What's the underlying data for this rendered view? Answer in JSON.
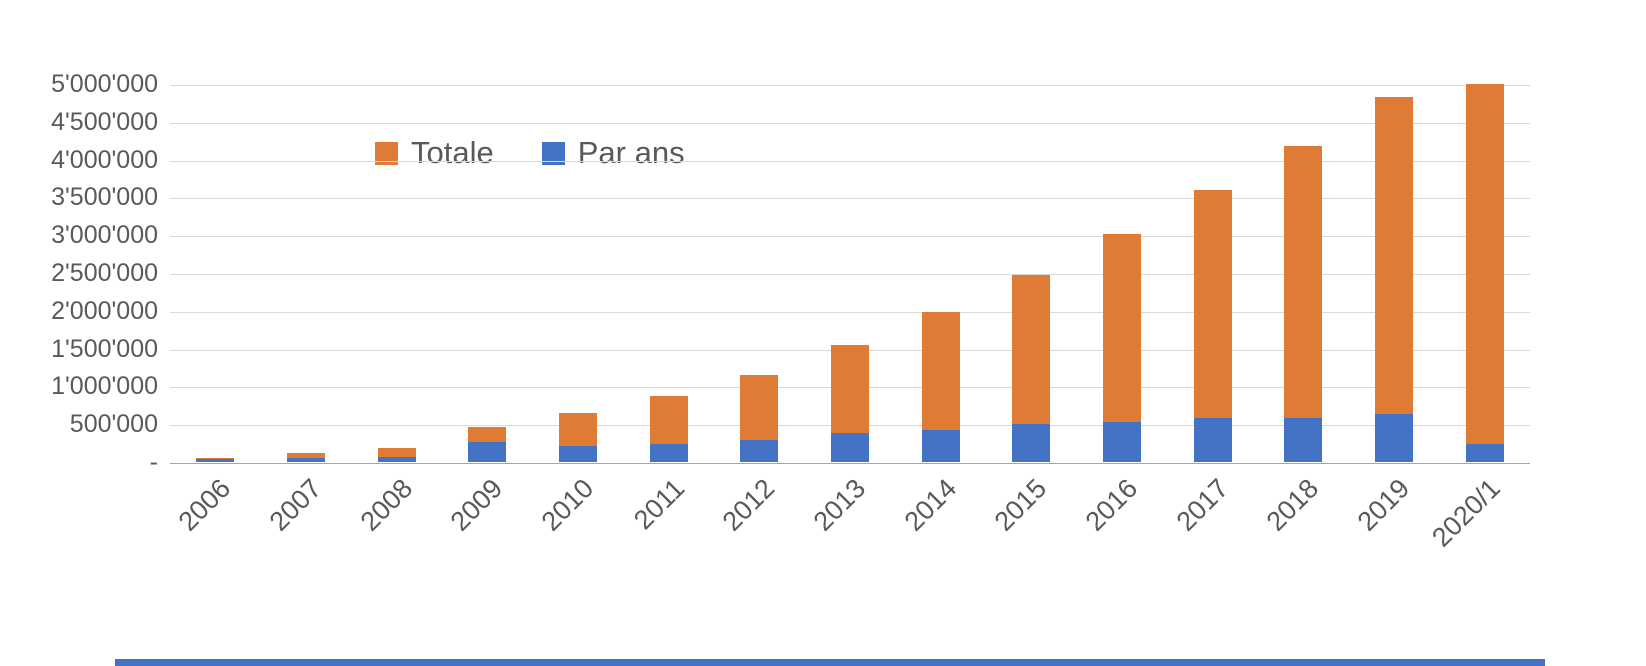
{
  "chart_data": {
    "type": "bar",
    "stacked": true,
    "title": "",
    "xlabel": "",
    "ylabel": "",
    "ylim": [
      0,
      5000000
    ],
    "grid": true,
    "legend_position": "top-left-inside",
    "categories": [
      "2006",
      "2007",
      "2008",
      "2009",
      "2010",
      "2011",
      "2012",
      "2013",
      "2014",
      "2015",
      "2016",
      "2017",
      "2018",
      "2019",
      "2020/1"
    ],
    "series": [
      {
        "name": "Totale",
        "color": "#df7b35",
        "values": [
          50000,
          120000,
          190000,
          460000,
          650000,
          870000,
          1150000,
          1550000,
          1980000,
          2480000,
          3020000,
          3600000,
          4180000,
          4830000,
          5000000
        ]
      },
      {
        "name": "Par ans",
        "color": "#4472c4",
        "values": [
          45000,
          50000,
          70000,
          260000,
          210000,
          240000,
          290000,
          390000,
          430000,
          500000,
          530000,
          580000,
          580000,
          630000,
          240000
        ]
      }
    ],
    "y_ticks": [
      {
        "value": 5000000,
        "label": "5'000'000"
      },
      {
        "value": 4500000,
        "label": "4'500'000"
      },
      {
        "value": 4000000,
        "label": "4'000'000"
      },
      {
        "value": 3500000,
        "label": "3'500'000"
      },
      {
        "value": 3000000,
        "label": "3'000'000"
      },
      {
        "value": 2500000,
        "label": "2'500'000"
      },
      {
        "value": 2000000,
        "label": "2'000'000"
      },
      {
        "value": 1500000,
        "label": "1'500'000"
      },
      {
        "value": 1000000,
        "label": "1'000'000"
      },
      {
        "value": 500000,
        "label": "500'000"
      },
      {
        "value": 0,
        "label": "-"
      }
    ]
  },
  "colors": {
    "text": "#595959",
    "gridline": "#d9d9d9",
    "axis_line": "#a6a6a6",
    "bottom_strip": "#4472c4"
  }
}
